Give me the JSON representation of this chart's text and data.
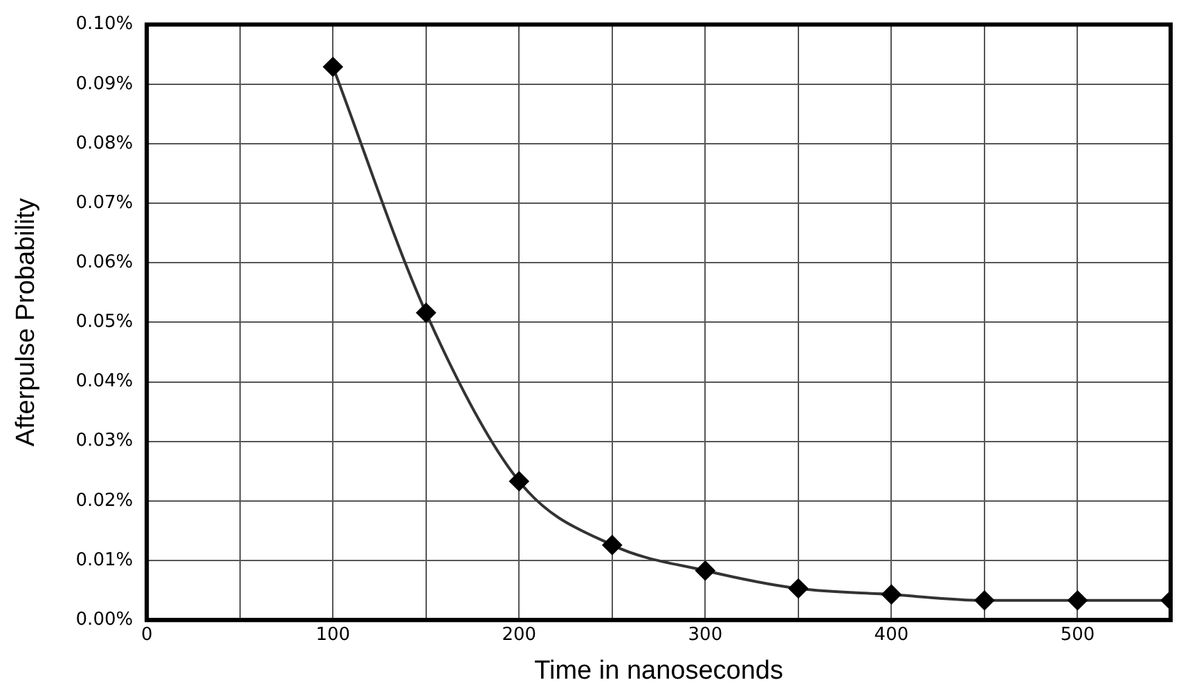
{
  "chart_data": {
    "type": "line",
    "xlabel": "Time in nanoseconds",
    "ylabel": "Afterpulse Probability",
    "x": [
      100,
      150,
      200,
      250,
      300,
      350,
      400,
      450,
      500,
      550
    ],
    "series": [
      {
        "color": "#000000",
        "values": [
          0.0929,
          0.0516,
          0.0233,
          0.0126,
          0.0083,
          0.0053,
          0.0043,
          0.0033,
          0.0033,
          0.0033
        ]
      }
    ],
    "xlim": [
      0,
      550
    ],
    "xticks": [
      0,
      {
        "value": 50,
        "label": null
      },
      100,
      {
        "value": 150,
        "label": null
      },
      200,
      {
        "value": 250,
        "label": null
      },
      300,
      {
        "value": 350,
        "label": null
      },
      400,
      {
        "value": 450,
        "label": null
      },
      500,
      {
        "value": 550,
        "label": null
      }
    ],
    "ylim": [
      0,
      0.1
    ],
    "yticks": [
      {
        "value": 0,
        "label": "0.00%"
      },
      {
        "value": 0.01,
        "label": "0.01%"
      },
      {
        "value": 0.02,
        "label": "0.02%"
      },
      {
        "value": 0.03,
        "label": "0.03%"
      },
      {
        "value": 0.04,
        "label": "0.04%"
      },
      {
        "value": 0.05,
        "label": "0.05%"
      },
      {
        "value": 0.06,
        "label": "0.06%"
      },
      {
        "value": 0.07,
        "label": "0.07%"
      },
      {
        "value": 0.08,
        "label": "0.08%"
      },
      {
        "value": 0.09,
        "label": "0.09%"
      },
      {
        "value": 0.1,
        "label": "0.10%"
      }
    ],
    "grid": true,
    "legend": false,
    "marker": "diamond",
    "line_style": "solid"
  }
}
